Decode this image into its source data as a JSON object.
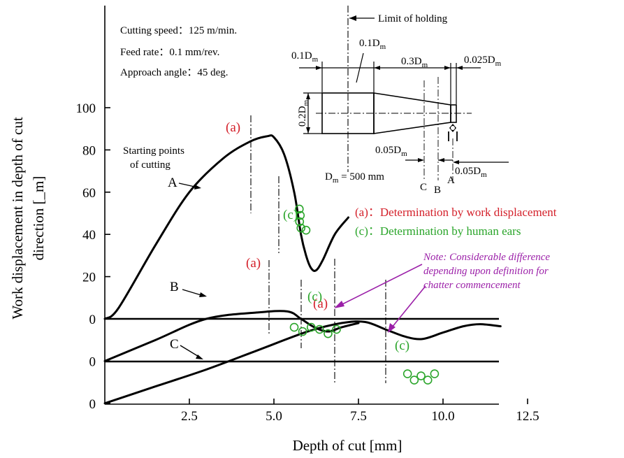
{
  "chart_data": {
    "type": "line",
    "title": "",
    "xlabel": "Depth of cut [mm]",
    "ylabel_lines": [
      "Work displacement in depth of cut",
      "direction [_m]"
    ],
    "x_ticks": [
      "2.5",
      "5.0",
      "7.5",
      "10.0",
      "12.5"
    ],
    "y_ticks": [
      "100",
      "80",
      "60",
      "40",
      "20",
      "0",
      "0",
      "0"
    ],
    "xlim": [
      0,
      13.2
    ],
    "ylim": [
      -40,
      100
    ],
    "conditions": [
      "Cutting speed：125 m/min.",
      "Feed rate：0.1 mm/rev.",
      "Approach angle：45 deg."
    ],
    "series": [
      {
        "name": "A",
        "baseline": 0,
        "x": [
          0,
          0.4,
          1.5,
          2.5,
          3.5,
          4.3,
          4.8,
          5.0,
          5.3,
          5.6,
          5.8,
          5.95,
          6.1,
          6.25,
          6.45,
          6.8,
          7.2
        ],
        "y": [
          0,
          5,
          35,
          60,
          76,
          84,
          86.5,
          86,
          78,
          60,
          40,
          30,
          24,
          23,
          28,
          40,
          48
        ]
      },
      {
        "name": "B",
        "baseline": -20,
        "x": [
          0,
          1.5,
          3,
          4.5,
          5.4,
          5.8,
          6.2,
          6.6,
          7.0,
          7.5
        ],
        "y": [
          -20,
          -10,
          0,
          3,
          3.5,
          0,
          -4,
          -6,
          -4,
          -2
        ]
      },
      {
        "name": "C",
        "baseline": -40,
        "x": [
          0,
          1.5,
          3,
          4.5,
          6,
          7,
          7.7,
          8.3,
          8.9,
          9.4,
          10.0,
          10.6,
          11.1,
          11.7
        ],
        "y": [
          -40,
          -32,
          -24,
          -15,
          -6,
          -2,
          -1.5,
          -5,
          -8.5,
          -9.5,
          -6.5,
          -3.5,
          -2.5,
          -3.5
        ]
      }
    ],
    "chatter_points": [
      {
        "series": "A",
        "work_displacement_x": 4.9,
        "human_ears_x": 5.8
      },
      {
        "series": "B",
        "work_displacement_x": 5.5,
        "human_ears_x": 6.5
      },
      {
        "series": "C",
        "work_displacement_x": 7.6,
        "human_ears_x": 9.3
      }
    ],
    "human_ears_circles": [
      {
        "x": 5.75,
        "y": 52
      },
      {
        "x": 5.78,
        "y": 49
      },
      {
        "x": 5.76,
        "y": 46
      },
      {
        "x": 5.8,
        "y": 43
      },
      {
        "x": 5.95,
        "y": 42
      },
      {
        "x": 5.6,
        "y": -4
      },
      {
        "x": 5.85,
        "y": -6
      },
      {
        "x": 6.1,
        "y": -4
      },
      {
        "x": 6.35,
        "y": -5
      },
      {
        "x": 6.6,
        "y": -7
      },
      {
        "x": 6.85,
        "y": -5
      },
      {
        "x": 8.95,
        "y": -26
      },
      {
        "x": 9.15,
        "y": -29
      },
      {
        "x": 9.35,
        "y": -27
      },
      {
        "x": 9.55,
        "y": -29
      },
      {
        "x": 9.75,
        "y": -26
      }
    ],
    "labels": {
      "a": "(a)",
      "c": "(c)",
      "series_A": "A",
      "series_B": "B",
      "series_C": "C",
      "starting_points": [
        "Starting points",
        "of cutting"
      ]
    },
    "legend": [
      {
        "text": "(a)：Determination by work displacement",
        "color": "#d4202a"
      },
      {
        "text": "(c)：Determination by human ears",
        "color": "#2aa52a"
      }
    ],
    "note": {
      "lines": [
        "Note: Considerable difference",
        "depending upon definition for",
        "chatter commencement"
      ],
      "color": "#9b1fa8"
    },
    "colors": {
      "axes": "#000000",
      "work_displacement": "#d4202a",
      "human_ears": "#2aa52a",
      "note": "#9b1fa8"
    }
  },
  "inset": {
    "limit_of_holding": "Limit of holding",
    "dims": {
      "top_left": "0.1D",
      "top_mid": "0.1D",
      "top_right1": "0.3D",
      "top_right2": "0.025D",
      "height": "0.2D",
      "bottom1": "0.05D",
      "bottom2": "0.05D",
      "sub": "m"
    },
    "dm_label": "D",
    "dm_value": " = 500 mm",
    "dm_sub": "m",
    "points": {
      "C": "C",
      "B": "B",
      "A": "A"
    }
  }
}
